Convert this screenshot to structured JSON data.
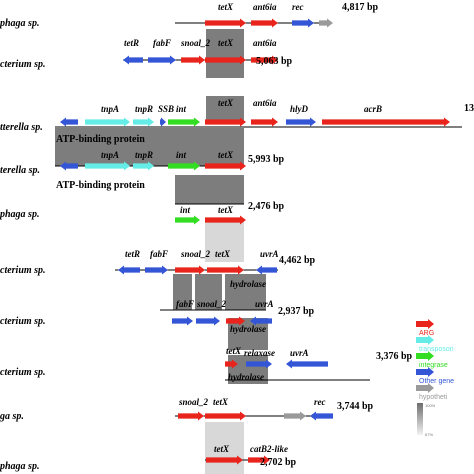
{
  "colors": {
    "ARG": "#e8241c",
    "transposase": "#66ece6",
    "integrase": "#33dd22",
    "other": "#3355d6",
    "hypothetical": "#9a9a9a",
    "homology_dark": "#7d7d7d",
    "homology_light": "#d8d8d8"
  },
  "species_labels": [
    "phaga sp.",
    "cterium sp.",
    "tterella sp.",
    "terella sp.",
    "phaga sp.",
    "cterium sp.",
    "cterium sp.",
    "cterium sp.",
    "ga sp.",
    "phaga sp."
  ],
  "sizes": [
    "4,817 bp",
    "5,063 bp",
    "13",
    "5,993 bp",
    "2,476 bp",
    "4,462 bp",
    "2,937 bp",
    "3,376 bp",
    "3,744 bp",
    "2,702 bp"
  ],
  "genes": {
    "tetX": "tetX",
    "ant6ia": "ant6ia",
    "rec": "rec",
    "tetR": "tetR",
    "fabF": "fabF",
    "snoal_2": "snoal_2",
    "tnpA": "tnpA",
    "tnpR": "tnpR",
    "SSB": "SSB",
    "int": "int",
    "hlyD": "hlyD",
    "acrB": "acrB",
    "uvrA": "uvrA",
    "hydrolase": "hydrolase",
    "relaxase": "relaxase",
    "catB2_like": "catB2-like"
  },
  "box_labels": {
    "atp1": "ATP-binding protein",
    "atp2": "ATP-binding protein"
  },
  "legend": [
    {
      "label": "ARG",
      "color": "#e8241c"
    },
    {
      "label": "transposon",
      "color": "#66ece6"
    },
    {
      "label": "integrase",
      "color": "#33dd22"
    },
    {
      "label": "Other gene",
      "color": "#3355d6"
    },
    {
      "label": "hypotheti",
      "color": "#9a9a9a"
    }
  ],
  "scale": {
    "top": "100%",
    "bottom": "67%"
  }
}
